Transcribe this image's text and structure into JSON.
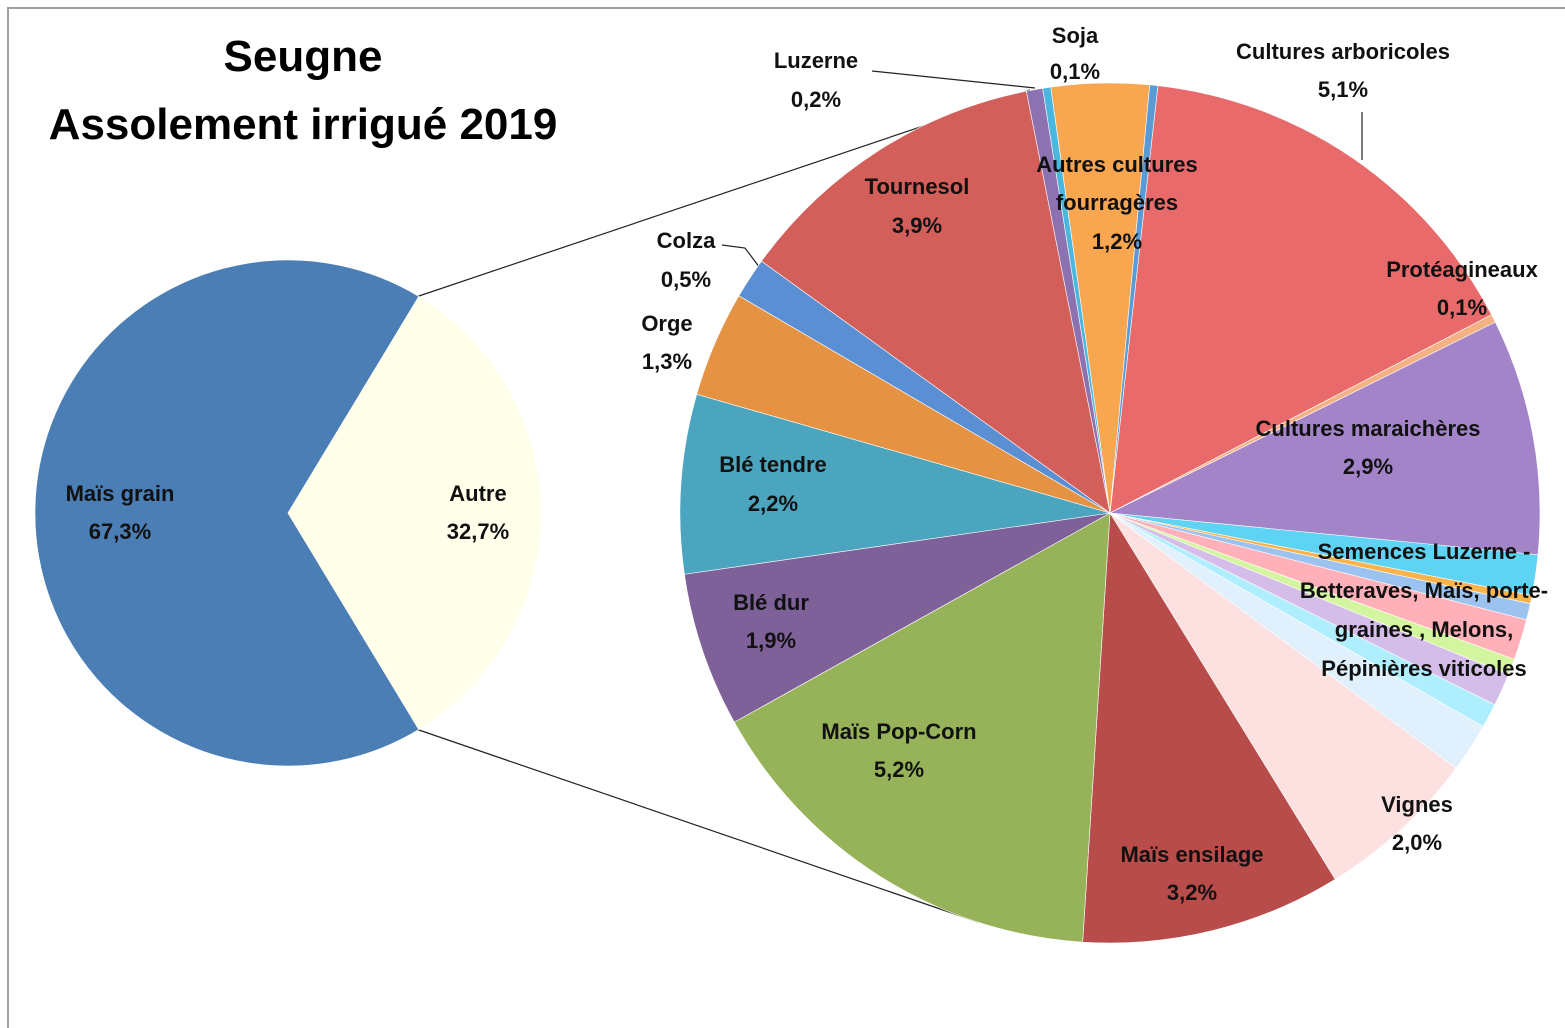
{
  "chart_data": [
    {
      "type": "pie",
      "title": "Seugne",
      "subtitle": "Assolement irrigué 2019",
      "categories": [
        "Maïs grain",
        "Autre"
      ],
      "values": [
        67.3,
        32.7
      ],
      "value_labels": [
        "67,3%",
        "32,7%"
      ],
      "colors": [
        "#4a7eb4",
        "#ffffea"
      ]
    },
    {
      "type": "pie",
      "categories": [
        "Cultures arboricoles",
        "Protéagineaux",
        "Cultures maraichères",
        null,
        null,
        null,
        null,
        null,
        null,
        null,
        null,
        "Vignes",
        "Maïs ensilage",
        "Maïs Pop-Corn",
        "Blé dur",
        "Blé tendre",
        "Orge",
        "Colza",
        "Tournesol",
        "Luzerne",
        "Soja",
        "Autres cultures fourragères",
        null
      ],
      "values": [
        5.1,
        0.1,
        2.9,
        0.5,
        0.1,
        0.2,
        0.5,
        0.2,
        0.4,
        0.3,
        0.6,
        2.0,
        3.2,
        5.2,
        1.9,
        2.2,
        1.3,
        0.5,
        3.9,
        0.2,
        0.1,
        1.2,
        0.1
      ],
      "value_labels": [
        "5,1%",
        "0,1%",
        "2,9%",
        null,
        null,
        null,
        null,
        null,
        null,
        null,
        null,
        "2,0%",
        "3,2%",
        "5,2%",
        "1,9%",
        "2,2%",
        "1,3%",
        "0,5%",
        "3,9%",
        "0,2%",
        "0,1%",
        "1,2%",
        null
      ],
      "colors": [
        "#e96a6a",
        "#f4b183",
        "#a484c8",
        "#5ed3f3",
        "#fab44b",
        "#9cc3f0",
        "#ffb0b8",
        "#d4f5a0",
        "#d4bde8",
        "#aeeeff",
        "#e0f0fc",
        "#fde0e0",
        "#b84c4a",
        "#97b35a",
        "#7d6198",
        "#4ba5be",
        "#e69243",
        "#5a8fd4",
        "#d35f5a",
        "#8c72b0",
        "#4ab7df",
        "#f9a650",
        "#5b9bd5"
      ],
      "annotations": [
        "Semences Luzerne - Betteraves, Maïs, porte-graines , Melons, Pépinières viticoles"
      ]
    }
  ]
}
